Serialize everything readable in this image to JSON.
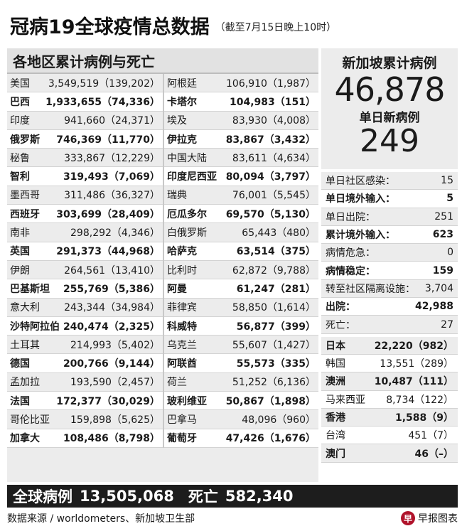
{
  "title": {
    "main": "冠病19全球疫情总数据",
    "sub": "（截至7月15日晚上10时）"
  },
  "left": {
    "header": "各地区累计病例与死亡",
    "col1": [
      {
        "name": "美国",
        "num": "3,549,519（139,202）",
        "bold": false
      },
      {
        "name": "巴西",
        "num": "1,933,655（74,336）",
        "bold": true
      },
      {
        "name": "印度",
        "num": "941,660（24,371）",
        "bold": false
      },
      {
        "name": "俄罗斯",
        "num": "746,369（11,770）",
        "bold": true
      },
      {
        "name": "秘鲁",
        "num": "333,867（12,229）",
        "bold": false
      },
      {
        "name": "智利",
        "num": "319,493（7,069）",
        "bold": true
      },
      {
        "name": "墨西哥",
        "num": "311,486（36,327）",
        "bold": false
      },
      {
        "name": "西班牙",
        "num": "303,699（28,409）",
        "bold": true
      },
      {
        "name": "南非",
        "num": "298,292（4,346）",
        "bold": false
      },
      {
        "name": "英国",
        "num": "291,373（44,968）",
        "bold": true
      },
      {
        "name": "伊朗",
        "num": "264,561（13,410）",
        "bold": false
      },
      {
        "name": "巴基斯坦",
        "num": "255,769（5,386）",
        "bold": true
      },
      {
        "name": "意大利",
        "num": "243,344（34,984）",
        "bold": false
      },
      {
        "name": "沙特阿拉伯",
        "num": "240,474（2,325）",
        "bold": true
      },
      {
        "name": "土耳其",
        "num": "214,993（5,402）",
        "bold": false
      },
      {
        "name": "德国",
        "num": "200,766（9,144）",
        "bold": true
      },
      {
        "name": "孟加拉",
        "num": "193,590（2,457）",
        "bold": false
      },
      {
        "name": "法国",
        "num": "172,377（30,029）",
        "bold": true
      },
      {
        "name": "哥伦比亚",
        "num": "159,898（5,625）",
        "bold": false
      },
      {
        "name": "加拿大",
        "num": "108,486（8,798）",
        "bold": true
      }
    ],
    "col2": [
      {
        "name": "阿根廷",
        "num": "106,910（1,987）",
        "bold": false
      },
      {
        "name": "卡塔尔",
        "num": "104,983（151）",
        "bold": true
      },
      {
        "name": "埃及",
        "num": "83,930（4,008）",
        "bold": false
      },
      {
        "name": "伊拉克",
        "num": "83,867（3,432）",
        "bold": true
      },
      {
        "name": "中国大陆",
        "num": "83,611（4,634）",
        "bold": false
      },
      {
        "name": "印度尼西亚",
        "num": "80,094（3,797）",
        "bold": true
      },
      {
        "name": "瑞典",
        "num": "76,001（5,545）",
        "bold": false
      },
      {
        "name": "厄瓜多尔",
        "num": "69,570（5,130）",
        "bold": true
      },
      {
        "name": "白俄罗斯",
        "num": "65,443（480）",
        "bold": false
      },
      {
        "name": "哈萨克",
        "num": "63,514（375）",
        "bold": true
      },
      {
        "name": "比利时",
        "num": "62,872（9,788）",
        "bold": false
      },
      {
        "name": "阿曼",
        "num": "61,247（281）",
        "bold": true
      },
      {
        "name": "菲律宾",
        "num": "58,850（1,614）",
        "bold": false
      },
      {
        "name": "科威特",
        "num": "56,877（399）",
        "bold": true
      },
      {
        "name": "乌克兰",
        "num": "55,607（1,427）",
        "bold": false
      },
      {
        "name": "阿联酋",
        "num": "55,573（335）",
        "bold": true
      },
      {
        "name": "荷兰",
        "num": "51,252（6,136）",
        "bold": false
      },
      {
        "name": "玻利维亚",
        "num": "50,867（1,898）",
        "bold": true
      },
      {
        "name": "巴拿马",
        "num": "48,096（960）",
        "bold": false
      },
      {
        "name": "葡萄牙",
        "num": "47,426（1,676）",
        "bold": true
      }
    ]
  },
  "singapore": {
    "total_label": "新加坡累计病例",
    "total": "46,878",
    "new_label": "单日新病例",
    "new": "249",
    "stats": [
      {
        "label": "单日社区感染：",
        "val": "15",
        "bold": false
      },
      {
        "label": "单日境外输入：",
        "val": "5",
        "bold": true
      },
      {
        "label": "单日出院：",
        "val": "251",
        "bold": false
      },
      {
        "label": "累计境外输入：",
        "val": "623",
        "bold": true
      },
      {
        "label": "病情危急：",
        "val": "0",
        "bold": false
      },
      {
        "label": "病情稳定：",
        "val": "159",
        "bold": true
      },
      {
        "label": "转至社区隔离设施：",
        "val": "3,704",
        "bold": false
      },
      {
        "label": "出院：",
        "val": "42,988",
        "bold": true
      },
      {
        "label": "死亡：",
        "val": "27",
        "bold": false
      }
    ]
  },
  "asia": [
    {
      "name": "日本",
      "num": "22,220（982）",
      "bold": true
    },
    {
      "name": "韩国",
      "num": "13,551（289）",
      "bold": false
    },
    {
      "name": "澳洲",
      "num": "10,487（111）",
      "bold": true
    },
    {
      "name": "马来西亚",
      "num": "8,734（122）",
      "bold": false
    },
    {
      "name": "香港",
      "num": "1,588（9）",
      "bold": true
    },
    {
      "name": "台湾",
      "num": "451（7）",
      "bold": false
    },
    {
      "name": "澳门",
      "num": "46（–）",
      "bold": true
    }
  ],
  "global": {
    "cases_label": "全球病例",
    "cases": "13,505,068",
    "deaths_label": "死亡",
    "deaths": "582,340"
  },
  "footer": {
    "source": "数据来源 / worldometers、新加坡卫生部",
    "credit": "早报图表",
    "logo_glyph": "早"
  }
}
